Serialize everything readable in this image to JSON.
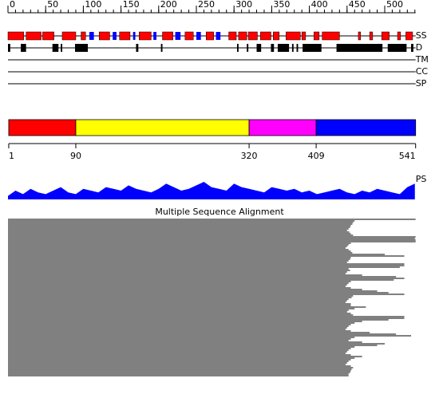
{
  "xlim": [
    0,
    541
  ],
  "ruler": {
    "ticks": [
      0,
      50,
      100,
      150,
      200,
      250,
      300,
      350,
      400,
      450,
      500
    ],
    "minor_step": 10
  },
  "tracks": {
    "ss": {
      "label": "SS",
      "helix_color": "#ff0000",
      "strand_color": "#0000ff",
      "helices": [
        [
          0,
          21
        ],
        [
          24,
          44
        ],
        [
          46,
          61
        ],
        [
          72,
          90
        ],
        [
          97,
          103
        ],
        [
          121,
          135
        ],
        [
          148,
          162
        ],
        [
          174,
          190
        ],
        [
          205,
          219
        ],
        [
          235,
          246
        ],
        [
          263,
          273
        ],
        [
          293,
          303
        ],
        [
          306,
          317
        ],
        [
          319,
          331
        ],
        [
          335,
          349
        ],
        [
          352,
          360
        ],
        [
          369,
          388
        ],
        [
          390,
          395
        ],
        [
          406,
          413
        ],
        [
          417,
          440
        ],
        [
          465,
          468
        ],
        [
          480,
          484
        ],
        [
          496,
          506
        ],
        [
          517,
          521
        ],
        [
          528,
          537
        ]
      ],
      "strands": [
        [
          108,
          114
        ],
        [
          139,
          144
        ],
        [
          166,
          169
        ],
        [
          193,
          197
        ],
        [
          222,
          229
        ],
        [
          250,
          256
        ],
        [
          276,
          282
        ]
      ]
    },
    "d": {
      "label": "D",
      "color": "#000000",
      "regions": [
        [
          0,
          3
        ],
        [
          17,
          24
        ],
        [
          59,
          67
        ],
        [
          70,
          72
        ],
        [
          89,
          106
        ],
        [
          170,
          173
        ],
        [
          203,
          205
        ],
        [
          304,
          306
        ],
        [
          317,
          319
        ],
        [
          330,
          336
        ],
        [
          349,
          353
        ],
        [
          358,
          373
        ],
        [
          377,
          379
        ],
        [
          383,
          385
        ],
        [
          391,
          416
        ],
        [
          436,
          497
        ],
        [
          504,
          529
        ],
        [
          535,
          538
        ]
      ]
    },
    "tm": {
      "label": "TM"
    },
    "cc": {
      "label": "CC"
    },
    "sp": {
      "label": "SP"
    }
  },
  "domains": {
    "boundaries": [
      1,
      90,
      320,
      409,
      541
    ],
    "colors": [
      "#ff0000",
      "#ffff00",
      "#ff00ff",
      "#0000ff"
    ]
  },
  "ps": {
    "label": "PS",
    "color": "#0000ff",
    "step": 10,
    "values": [
      2,
      5,
      3,
      6,
      4,
      3,
      5,
      7,
      4,
      3,
      6,
      5,
      4,
      7,
      6,
      5,
      8,
      6,
      5,
      4,
      6,
      9,
      7,
      5,
      6,
      8,
      10,
      7,
      6,
      5,
      9,
      7,
      6,
      5,
      4,
      7,
      6,
      5,
      6,
      4,
      5,
      3,
      4,
      5,
      6,
      4,
      3,
      5,
      4,
      6,
      5,
      4,
      3,
      7,
      9
    ]
  },
  "msa": {
    "title": "Multiple Sequence Alignment",
    "rows": [
      541,
      460,
      458,
      457,
      455,
      454,
      452,
      450,
      453,
      455,
      458,
      541,
      540,
      541,
      541,
      455,
      452,
      450,
      448,
      452,
      455,
      457,
      500,
      526,
      455,
      454,
      452,
      450,
      526,
      526,
      520,
      452,
      454,
      450,
      448,
      470,
      515,
      526,
      512,
      455,
      452,
      450,
      448,
      455,
      470,
      490,
      505,
      526,
      458,
      456,
      452,
      450,
      448,
      455,
      455,
      475,
      460,
      452,
      450,
      455,
      458,
      526,
      526,
      505,
      470,
      460,
      455,
      452,
      450,
      448,
      455,
      480,
      515,
      535,
      460,
      455,
      452,
      470,
      500,
      490,
      460,
      455,
      452,
      450,
      448,
      455,
      470,
      460,
      455,
      452,
      450,
      448,
      455,
      458,
      456,
      455,
      454,
      452,
      452
    ]
  }
}
